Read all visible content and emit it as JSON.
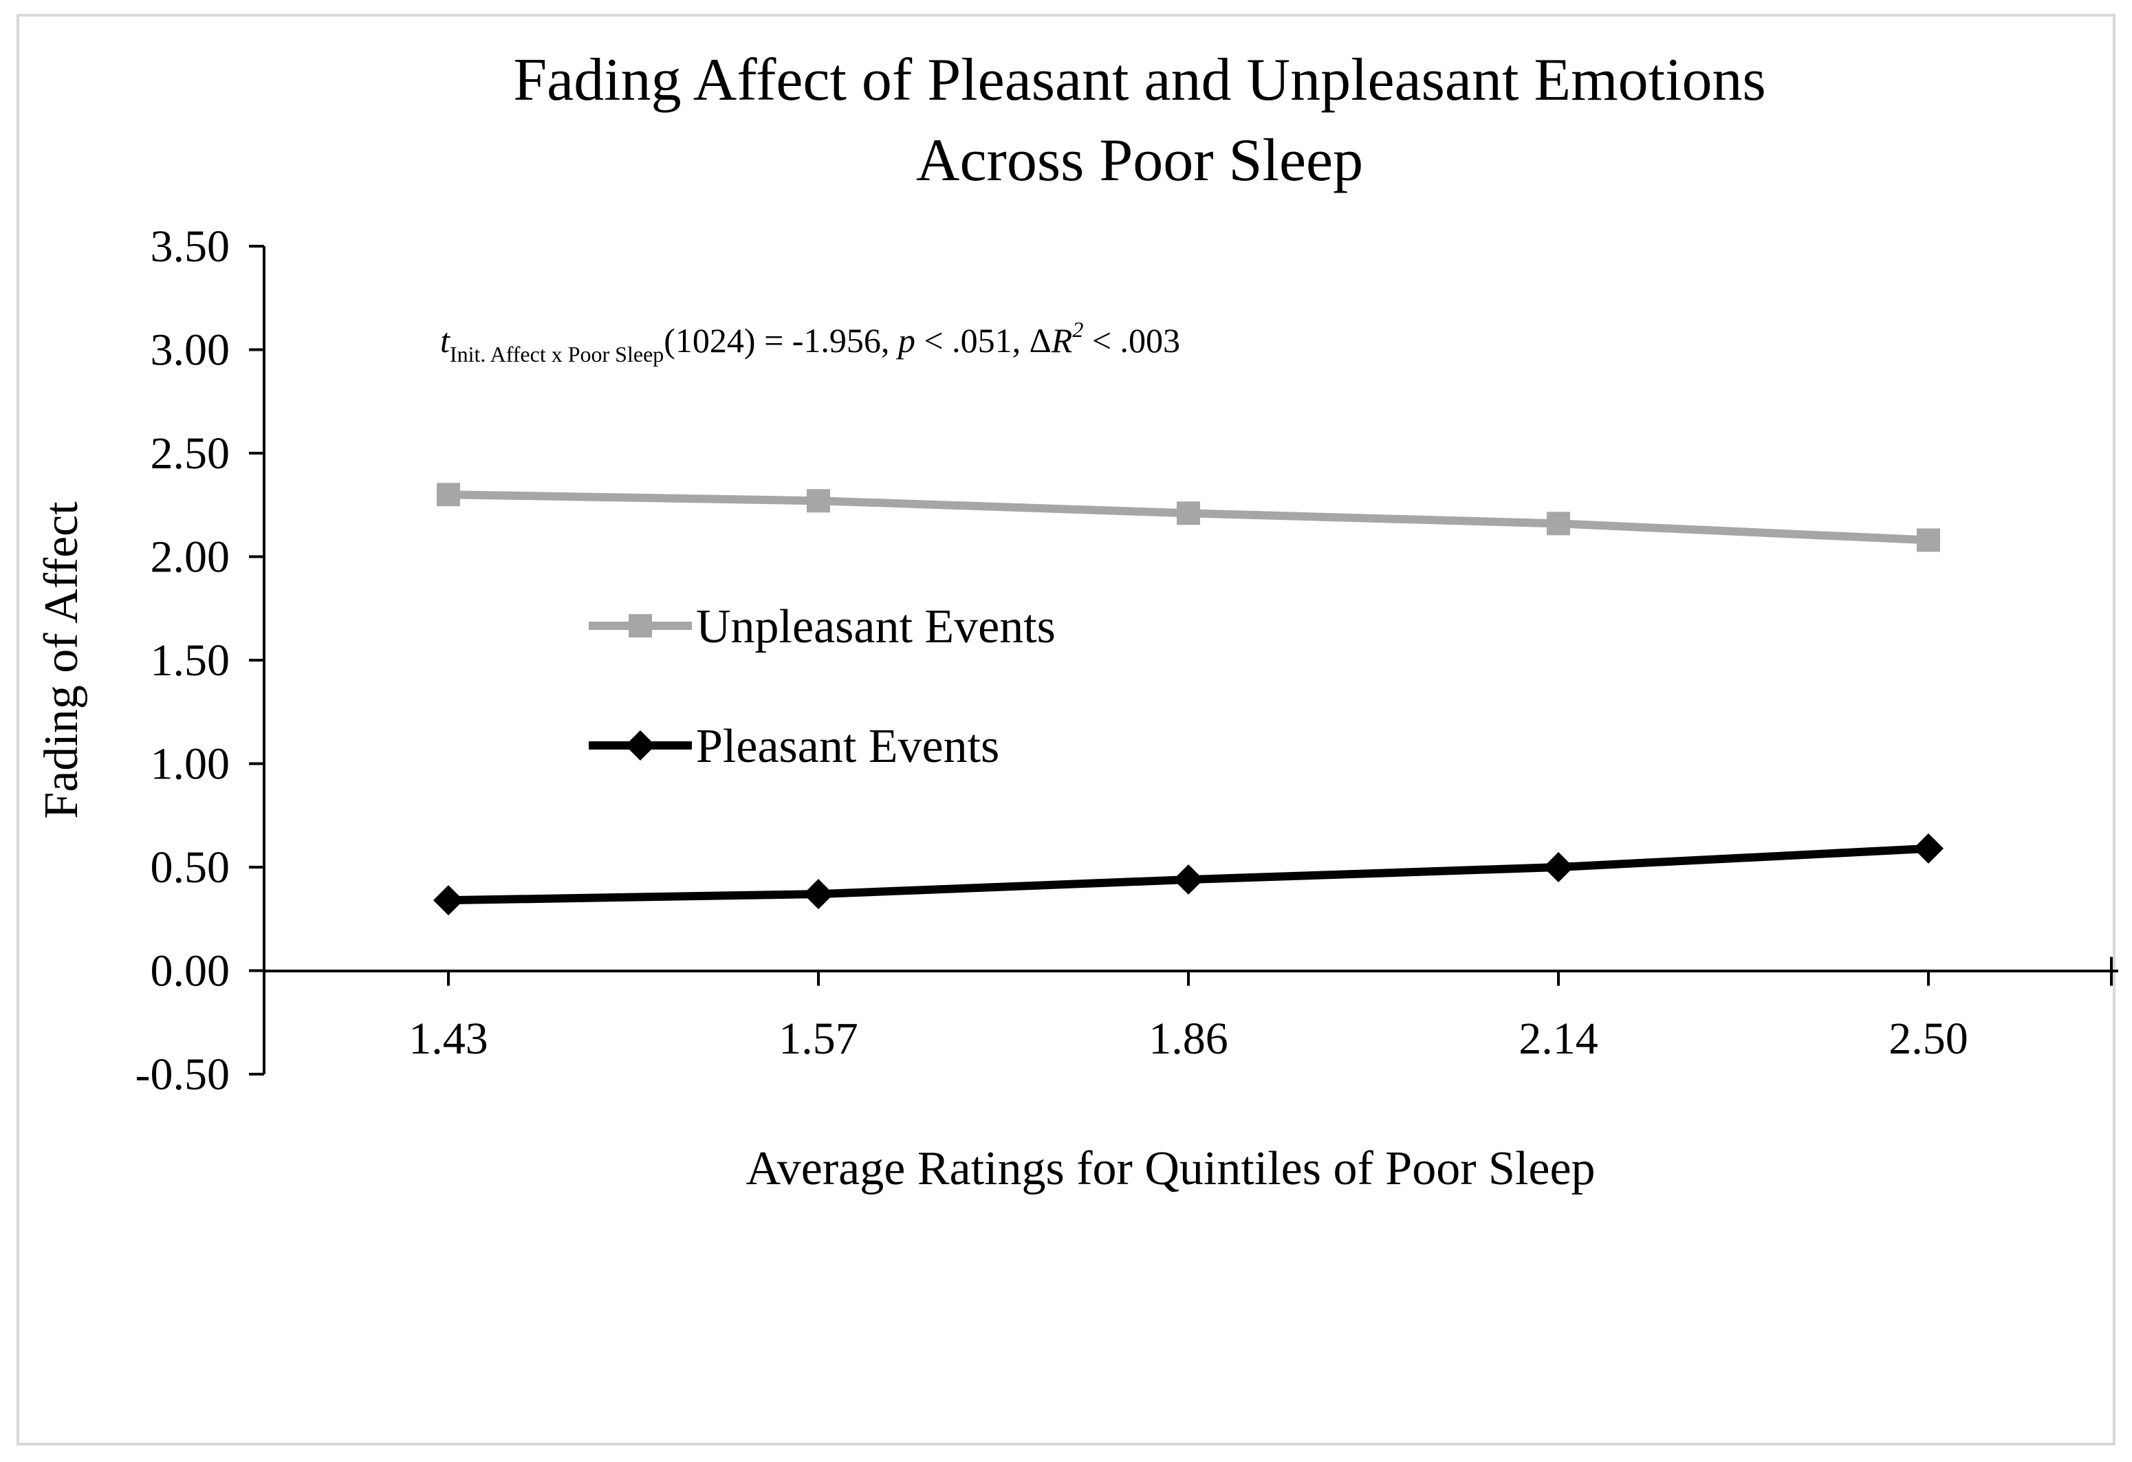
{
  "chart_data": {
    "type": "line",
    "title_lines": [
      "Fading Affect of Pleasant and Unpleasant Emotions",
      "Across Poor Sleep"
    ],
    "xlabel": "Average Ratings for Quintiles of Poor Sleep",
    "ylabel": "Fading of Affect",
    "categories": [
      "1.43",
      "1.57",
      "1.86",
      "2.14",
      "2.50"
    ],
    "ylim": [
      -0.5,
      3.5
    ],
    "yticks": [
      "3.50",
      "3.00",
      "2.50",
      "2.00",
      "1.50",
      "1.00",
      "0.50",
      "0.00",
      "-0.50"
    ],
    "ytick_values": [
      3.5,
      3.0,
      2.5,
      2.0,
      1.5,
      1.0,
      0.5,
      0.0,
      -0.5
    ],
    "grid": false,
    "legend_position": "center-left",
    "series": [
      {
        "name": "Unpleasant Events",
        "color": "#a6a6a6",
        "marker": "square",
        "values": [
          2.3,
          2.27,
          2.21,
          2.16,
          2.08
        ]
      },
      {
        "name": "Pleasant Events",
        "color": "#000000",
        "marker": "diamond",
        "values": [
          0.34,
          0.37,
          0.44,
          0.5,
          0.59
        ]
      }
    ],
    "annotation": {
      "t": "t",
      "subscript": "Init. Affect x Poor Sleep",
      "part1": "(1024) = -1.956, ",
      "p": "p",
      "part2": " < .051, Δ",
      "R": "R",
      "sup": "2",
      "part3": " < .003"
    }
  }
}
